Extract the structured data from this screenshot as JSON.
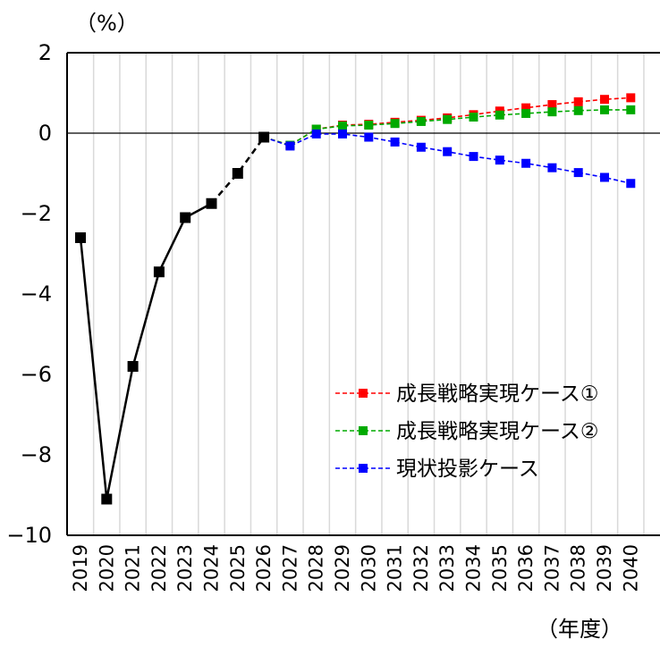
{
  "chart_data": {
    "type": "line",
    "title": "",
    "y_unit_label": "（%）",
    "x_unit_label": "（年度）",
    "x": [
      "2019",
      "2020",
      "2021",
      "2022",
      "2023",
      "2024",
      "2025",
      "2026",
      "2027",
      "2028",
      "2029",
      "2030",
      "2031",
      "2032",
      "2033",
      "2034",
      "2035",
      "2036",
      "2037",
      "2038",
      "2039",
      "2040"
    ],
    "ylim": [
      -10,
      2
    ],
    "yticks": [
      2,
      0,
      -2,
      -4,
      -6,
      -8,
      -10
    ],
    "ytick_labels": [
      "2",
      "0",
      "−2",
      "−4",
      "−6",
      "−8",
      "−10"
    ],
    "grid": {
      "vertical": true,
      "horizontal": false
    },
    "legend_position": "bottom-right",
    "actual": {
      "color": "#000000",
      "solid_until": "2024",
      "values": [
        -2.6,
        -9.1,
        -5.8,
        -3.45,
        -2.1,
        -1.75,
        -1.0,
        -0.1
      ]
    },
    "series": [
      {
        "name": "成長戦略実現ケース①",
        "color": "#ff0000",
        "x": [
          "2026",
          "2027",
          "2028",
          "2029",
          "2030",
          "2031",
          "2032",
          "2033",
          "2034",
          "2035",
          "2036",
          "2037",
          "2038",
          "2039",
          "2040"
        ],
        "values": [
          -0.1,
          -0.3,
          0.1,
          0.2,
          0.22,
          0.27,
          0.32,
          0.38,
          0.46,
          0.55,
          0.63,
          0.71,
          0.78,
          0.84,
          0.88
        ]
      },
      {
        "name": "成長戦略実現ケース②",
        "color": "#00aa00",
        "x": [
          "2026",
          "2027",
          "2028",
          "2029",
          "2030",
          "2031",
          "2032",
          "2033",
          "2034",
          "2035",
          "2036",
          "2037",
          "2038",
          "2039",
          "2040"
        ],
        "values": [
          -0.1,
          -0.3,
          0.1,
          0.18,
          0.2,
          0.24,
          0.29,
          0.34,
          0.4,
          0.45,
          0.49,
          0.53,
          0.56,
          0.58,
          0.58
        ]
      },
      {
        "name": "現状投影ケース",
        "color": "#0000ff",
        "x": [
          "2026",
          "2027",
          "2028",
          "2029",
          "2030",
          "2031",
          "2032",
          "2033",
          "2034",
          "2035",
          "2036",
          "2037",
          "2038",
          "2039",
          "2040"
        ],
        "values": [
          -0.1,
          -0.32,
          -0.02,
          -0.02,
          -0.1,
          -0.22,
          -0.35,
          -0.46,
          -0.58,
          -0.67,
          -0.75,
          -0.86,
          -0.98,
          -1.1,
          -1.25
        ]
      }
    ]
  }
}
